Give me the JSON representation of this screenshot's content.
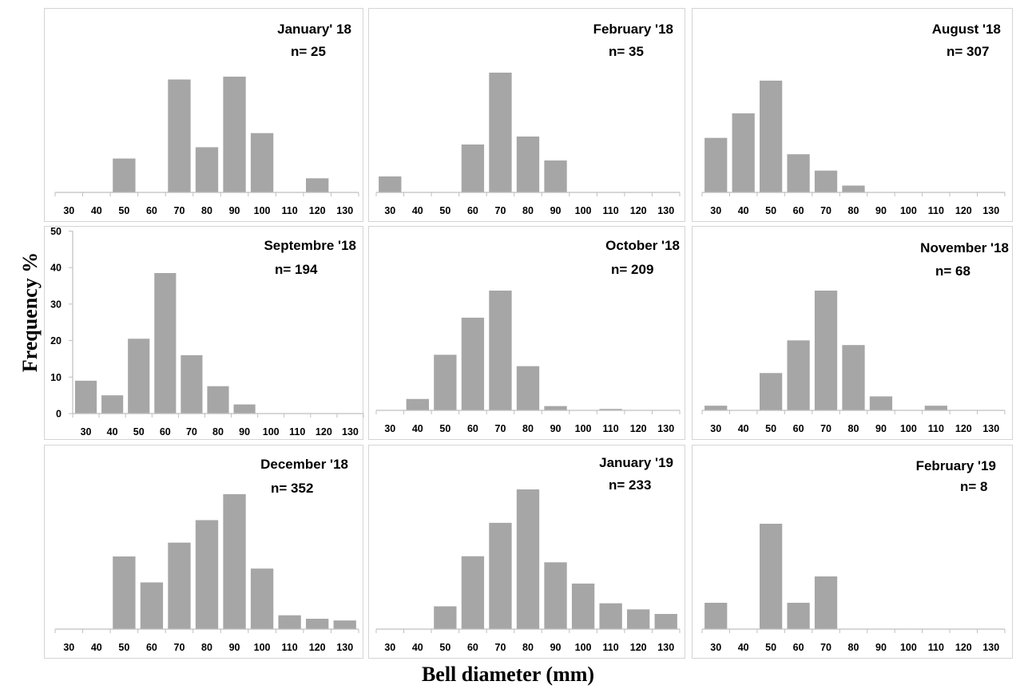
{
  "figure": {
    "ylabel": "Frequency %",
    "xlabel": "Bell diameter (mm)",
    "bar_color": "#a6a6a6",
    "axis_color": "#bfbfbf"
  },
  "chart_data": [
    {
      "type": "bar",
      "title": "January' 18",
      "n": "n= 25",
      "categories": [
        "30",
        "40",
        "50",
        "60",
        "70",
        "80",
        "90",
        "100",
        "110",
        "120",
        "130"
      ],
      "values": [
        0,
        0,
        12,
        0,
        40,
        16,
        41,
        21,
        0,
        5,
        0
      ],
      "ylim": [
        0,
        50
      ]
    },
    {
      "type": "bar",
      "title": "February '18",
      "n": "n= 35",
      "categories": [
        "30",
        "40",
        "50",
        "60",
        "70",
        "80",
        "90",
        "100",
        "110",
        "120",
        "130"
      ],
      "values": [
        6,
        0,
        0,
        18,
        45,
        21,
        12,
        0,
        0,
        0,
        0
      ],
      "ylim": [
        0,
        50
      ]
    },
    {
      "type": "bar",
      "title": "August '18",
      "n": "n= 307",
      "categories": [
        "30",
        "40",
        "50",
        "60",
        "70",
        "80",
        "90",
        "100",
        "110",
        "120",
        "130"
      ],
      "values": [
        20,
        29,
        41,
        14,
        8,
        2.5,
        0,
        0,
        0,
        0,
        0
      ],
      "ylim": [
        0,
        50
      ]
    },
    {
      "type": "bar",
      "title": "Septembre '18",
      "n": "n= 194",
      "categories": [
        "30",
        "40",
        "50",
        "60",
        "70",
        "80",
        "90",
        "100",
        "110",
        "120",
        "130"
      ],
      "values": [
        9,
        5,
        20.5,
        38.5,
        16,
        7.5,
        2.5,
        0,
        0,
        0,
        0
      ],
      "ylim": [
        0,
        50
      ],
      "yticks": [
        "0",
        "10",
        "20",
        "30",
        "40",
        "50"
      ]
    },
    {
      "type": "bar",
      "title": "October '18",
      "n": "n= 209",
      "categories": [
        "30",
        "40",
        "50",
        "60",
        "70",
        "80",
        "90",
        "100",
        "110",
        "120",
        "130"
      ],
      "values": [
        0,
        4,
        19.5,
        32.5,
        42,
        15.5,
        1.5,
        0,
        0.5,
        0,
        0
      ],
      "ylim": [
        0,
        50
      ]
    },
    {
      "type": "bar",
      "title": "November '18",
      "n": "n= 68",
      "categories": [
        "30",
        "40",
        "50",
        "60",
        "70",
        "80",
        "90",
        "100",
        "110",
        "120",
        "130"
      ],
      "values": [
        1.5,
        0,
        12,
        22.5,
        38.5,
        21,
        4.5,
        0,
        1.5,
        0,
        0
      ],
      "ylim": [
        0,
        50
      ]
    },
    {
      "type": "bar",
      "title": "December '18",
      "n": "n= 352",
      "categories": [
        "30",
        "40",
        "50",
        "60",
        "70",
        "80",
        "90",
        "100",
        "110",
        "120",
        "130"
      ],
      "values": [
        0,
        0,
        21,
        13.5,
        25,
        31.5,
        39,
        17.5,
        4,
        3,
        2.5
      ],
      "ylim": [
        0,
        50
      ]
    },
    {
      "type": "bar",
      "title": "January '19",
      "n": "n= 233",
      "categories": [
        "30",
        "40",
        "50",
        "60",
        "70",
        "80",
        "90",
        "100",
        "110",
        "120",
        "130"
      ],
      "values": [
        0,
        0,
        7.5,
        24,
        35,
        46,
        22,
        15,
        8.5,
        6.5,
        5
      ],
      "ylim": [
        0,
        50
      ]
    },
    {
      "type": "bar",
      "title": "February '19",
      "n": "n= 8",
      "categories": [
        "30",
        "40",
        "50",
        "60",
        "70",
        "80",
        "90",
        "100",
        "110",
        "120",
        "130"
      ],
      "values": [
        12.5,
        0,
        50,
        12.5,
        25,
        0,
        0,
        0,
        0,
        0,
        0
      ],
      "ylim": [
        0,
        60
      ]
    }
  ]
}
